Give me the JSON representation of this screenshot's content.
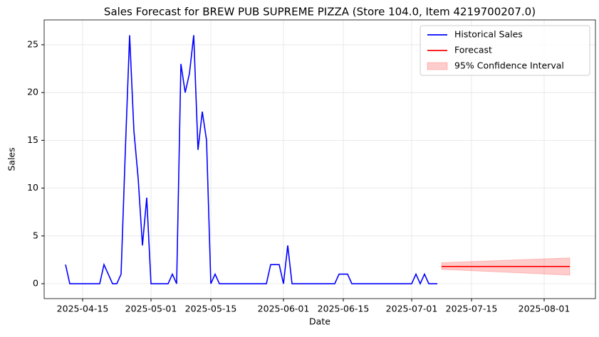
{
  "chart_data": {
    "type": "line",
    "title": "Sales Forecast for BREW PUB SUPREME PIZZA (Store 104.0, Item 4219700207.0)",
    "xlabel": "Date",
    "ylabel": "Sales",
    "x": [
      "2025-04-11",
      "2025-04-12",
      "2025-04-13",
      "2025-04-14",
      "2025-04-15",
      "2025-04-16",
      "2025-04-17",
      "2025-04-18",
      "2025-04-19",
      "2025-04-20",
      "2025-04-21",
      "2025-04-22",
      "2025-04-23",
      "2025-04-24",
      "2025-04-25",
      "2025-04-26",
      "2025-04-27",
      "2025-04-28",
      "2025-04-29",
      "2025-04-30",
      "2025-05-01",
      "2025-05-02",
      "2025-05-03",
      "2025-05-04",
      "2025-05-05",
      "2025-05-06",
      "2025-05-07",
      "2025-05-08",
      "2025-05-09",
      "2025-05-10",
      "2025-05-11",
      "2025-05-12",
      "2025-05-13",
      "2025-05-14",
      "2025-05-15",
      "2025-05-16",
      "2025-05-17",
      "2025-05-18",
      "2025-05-19",
      "2025-05-20",
      "2025-05-21",
      "2025-05-22",
      "2025-05-23",
      "2025-05-24",
      "2025-05-25",
      "2025-05-26",
      "2025-05-27",
      "2025-05-28",
      "2025-05-29",
      "2025-05-30",
      "2025-05-31",
      "2025-06-01",
      "2025-06-02",
      "2025-06-03",
      "2025-06-04",
      "2025-06-05",
      "2025-06-06",
      "2025-06-07",
      "2025-06-08",
      "2025-06-09",
      "2025-06-10",
      "2025-06-11",
      "2025-06-12",
      "2025-06-13",
      "2025-06-14",
      "2025-06-15",
      "2025-06-16",
      "2025-06-17",
      "2025-06-18",
      "2025-06-19",
      "2025-06-20",
      "2025-06-21",
      "2025-06-22",
      "2025-06-23",
      "2025-06-24",
      "2025-06-25",
      "2025-06-26",
      "2025-06-27",
      "2025-06-28",
      "2025-06-29",
      "2025-06-30",
      "2025-07-01",
      "2025-07-02",
      "2025-07-03",
      "2025-07-04",
      "2025-07-05",
      "2025-07-06",
      "2025-07-07"
    ],
    "series": [
      {
        "name": "Historical Sales",
        "color": "#0000ff",
        "values": [
          2,
          0,
          0,
          0,
          0,
          0,
          0,
          0,
          0,
          2,
          1,
          0,
          0,
          1,
          14,
          26,
          16,
          11,
          4,
          9,
          0,
          0,
          0,
          0,
          0,
          1,
          0,
          23,
          20,
          22,
          26,
          14,
          18,
          15,
          0,
          1,
          0,
          0,
          0,
          0,
          0,
          0,
          0,
          0,
          0,
          0,
          0,
          0,
          2,
          2,
          2,
          0,
          4,
          0,
          0,
          0,
          0,
          0,
          0,
          0,
          0,
          0,
          0,
          0,
          1,
          1,
          1,
          0,
          0,
          0,
          0,
          0,
          0,
          0,
          0,
          0,
          0,
          0,
          0,
          0,
          0,
          0,
          1,
          0,
          1,
          0,
          0,
          0
        ]
      }
    ],
    "forecast": {
      "name": "Forecast",
      "color": "#ff0000",
      "x": [
        "2025-07-08",
        "2025-08-07"
      ],
      "values": [
        1.8,
        1.8
      ]
    },
    "interval": {
      "name": "95% Confidence Interval",
      "color": "#ff0000",
      "x": [
        "2025-07-08",
        "2025-08-07"
      ],
      "lower": [
        1.5,
        0.9
      ],
      "upper": [
        2.2,
        2.7
      ]
    },
    "xlim": [
      "2025-04-06",
      "2025-08-13"
    ],
    "xticks": [
      "2025-04-15",
      "2025-05-01",
      "2025-05-15",
      "2025-06-01",
      "2025-06-15",
      "2025-07-01",
      "2025-07-15",
      "2025-08-01"
    ],
    "ylim": [
      -1.56,
      27.6
    ],
    "yticks": [
      0,
      5,
      10,
      15,
      20,
      25
    ],
    "grid": true,
    "legend": "upper right"
  }
}
